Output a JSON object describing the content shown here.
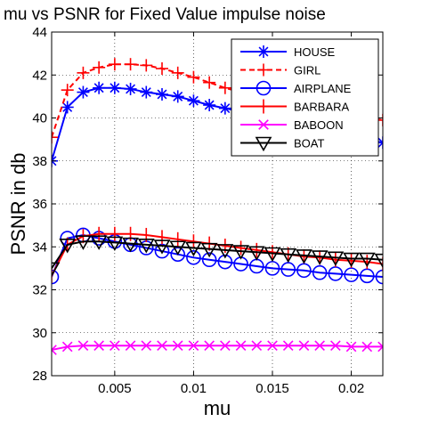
{
  "chart_data": {
    "type": "line",
    "title": "mu vs PSNR for Fixed Value impulse noise",
    "xlabel": "mu",
    "ylabel": "PSNR in db",
    "xlim": [
      0.001,
      0.022
    ],
    "ylim": [
      28,
      44
    ],
    "xticks": [
      0.005,
      0.01,
      0.015,
      0.02
    ],
    "xtick_labels": [
      "0.005",
      "0.01",
      "0.015",
      "0.02"
    ],
    "yticks": [
      28,
      30,
      32,
      34,
      36,
      38,
      40,
      42,
      44
    ],
    "ytick_labels": [
      "28",
      "30",
      "32",
      "34",
      "36",
      "38",
      "40",
      "42",
      "44"
    ],
    "grid": true,
    "legend_position": "top-right",
    "x": [
      0.001,
      0.002,
      0.003,
      0.004,
      0.005,
      0.006,
      0.007,
      0.008,
      0.009,
      0.01,
      0.011,
      0.012,
      0.013,
      0.014,
      0.015,
      0.016,
      0.017,
      0.018,
      0.019,
      0.02,
      0.021,
      0.022
    ],
    "series": [
      {
        "name": "HOUSE",
        "color": "#0000ff",
        "line": "solid",
        "marker": "asterisk",
        "values": [
          38.0,
          40.5,
          41.2,
          41.4,
          41.4,
          41.35,
          41.2,
          41.1,
          41.0,
          40.8,
          40.6,
          40.45,
          40.3,
          40.1,
          40.0,
          39.8,
          39.6,
          39.5,
          39.3,
          39.2,
          39.0,
          38.85
        ]
      },
      {
        "name": "GIRL",
        "color": "#ff0000",
        "line": "dashed",
        "marker": "plus",
        "values": [
          39.1,
          41.3,
          42.1,
          42.35,
          42.5,
          42.5,
          42.45,
          42.3,
          42.1,
          41.9,
          41.65,
          41.4,
          41.2,
          41.0,
          40.8,
          40.6,
          40.45,
          40.3,
          40.2,
          40.1,
          40.0,
          39.9
        ]
      },
      {
        "name": "AIRPLANE",
        "color": "#0000ff",
        "line": "solid",
        "marker": "circle",
        "values": [
          32.6,
          34.4,
          34.55,
          34.4,
          34.25,
          34.1,
          33.95,
          33.8,
          33.65,
          33.5,
          33.4,
          33.3,
          33.2,
          33.1,
          33.0,
          32.95,
          32.9,
          32.8,
          32.75,
          32.7,
          32.65,
          32.6
        ]
      },
      {
        "name": "BARBARA",
        "color": "#ff0000",
        "line": "solid",
        "marker": "vbar",
        "values": [
          32.65,
          34.1,
          34.5,
          34.6,
          34.6,
          34.6,
          34.55,
          34.45,
          34.35,
          34.25,
          34.15,
          34.05,
          33.95,
          33.85,
          33.75,
          33.65,
          33.55,
          33.5,
          33.4,
          33.35,
          33.3,
          33.2
        ]
      },
      {
        "name": "BABOON",
        "color": "#ff00ff",
        "line": "solid",
        "marker": "x",
        "values": [
          29.2,
          29.35,
          29.4,
          29.4,
          29.4,
          29.4,
          29.4,
          29.4,
          29.4,
          29.4,
          29.4,
          29.4,
          29.4,
          29.4,
          29.4,
          29.4,
          29.4,
          29.4,
          29.4,
          29.35,
          29.35,
          29.35
        ]
      },
      {
        "name": "BOAT",
        "color": "#000000",
        "line": "solid",
        "marker": "triangle-down",
        "values": [
          33.0,
          34.1,
          34.25,
          34.25,
          34.2,
          34.15,
          34.1,
          34.05,
          34.0,
          33.95,
          33.9,
          33.85,
          33.8,
          33.75,
          33.7,
          33.65,
          33.6,
          33.55,
          33.5,
          33.45,
          33.45,
          33.4
        ]
      }
    ]
  }
}
